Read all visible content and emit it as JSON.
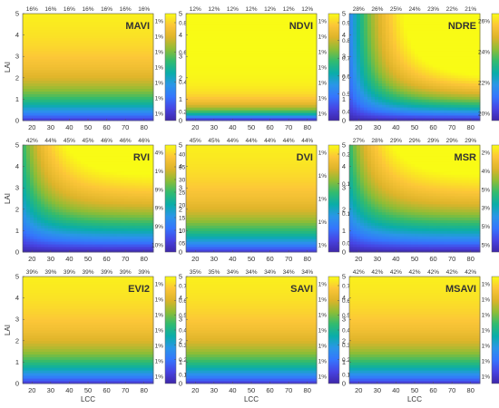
{
  "colormap": [
    "#3e26a8",
    "#4744e3",
    "#3575fd",
    "#2a96e8",
    "#0aada9",
    "#31bb6f",
    "#8dbd36",
    "#ddb42a",
    "#fcc638",
    "#f9fb15"
  ],
  "chart_data": [
    {
      "type": "heatmap",
      "panel": "MAVI",
      "title": "MAVI",
      "xlabel": "",
      "ylabel": "LAI",
      "xlim": [
        15,
        85
      ],
      "ylim": [
        0,
        5
      ],
      "xticks": [
        "20",
        "30",
        "40",
        "50",
        "60",
        "70",
        "80"
      ],
      "yticks": [
        "0",
        "1",
        "2",
        "3",
        "4",
        "5"
      ],
      "top_labels": [
        "16%",
        "16%",
        "16%",
        "16%",
        "16%",
        "16%",
        "16%"
      ],
      "colorbar_label": "",
      "colorbar_left": [
        "1%",
        "1%",
        "1%",
        "1%",
        "1%",
        "1%",
        "1%"
      ],
      "colorbar_right": [
        "0.8",
        "0.6",
        "0.4",
        "0.2"
      ],
      "pattern": "lai"
    },
    {
      "type": "heatmap",
      "panel": "NDVI",
      "title": "NDVI",
      "xlabel": "",
      "ylabel": "",
      "xlim": [
        15,
        85
      ],
      "ylim": [
        0,
        5
      ],
      "xticks": [
        "20",
        "30",
        "40",
        "50",
        "60",
        "70",
        "80"
      ],
      "yticks": [
        "0",
        "1",
        "2",
        "3",
        "4",
        "5"
      ],
      "top_labels": [
        "12%",
        "12%",
        "12%",
        "12%",
        "12%",
        "12%",
        "12%"
      ],
      "colorbar_label": "",
      "colorbar_left": [
        "1%",
        "1%",
        "1%",
        "1%",
        "1%",
        "1%",
        "1%"
      ],
      "colorbar_right": [
        "0.9",
        "0.8",
        "0.7",
        "0.6",
        "0.5",
        "0.4"
      ],
      "pattern": "ndvi"
    },
    {
      "type": "heatmap",
      "panel": "NDRE",
      "title": "NDRE",
      "xlabel": "",
      "ylabel": "",
      "xlim": [
        15,
        85
      ],
      "ylim": [
        0,
        5
      ],
      "xticks": [
        "20",
        "30",
        "40",
        "50",
        "60",
        "70",
        "80"
      ],
      "yticks": [
        "0",
        "1",
        "2",
        "3",
        "4",
        "5"
      ],
      "top_labels": [
        "28%",
        "26%",
        "25%",
        "24%",
        "23%",
        "22%",
        "21%"
      ],
      "colorbar_label": "VI",
      "colorbar_left": [
        "26%",
        "24%",
        "22%",
        "20%"
      ],
      "colorbar_right": [
        "0.5",
        "0.4",
        "0.3",
        "0.2",
        "0.1"
      ],
      "pattern": "curve_strong"
    },
    {
      "type": "heatmap",
      "panel": "RVI",
      "title": "RVI",
      "xlabel": "",
      "ylabel": "LAI",
      "xlim": [
        15,
        85
      ],
      "ylim": [
        0,
        5
      ],
      "xticks": [
        "20",
        "30",
        "40",
        "50",
        "60",
        "70",
        "80"
      ],
      "yticks": [
        "0",
        "1",
        "2",
        "3",
        "4",
        "5"
      ],
      "top_labels": [
        "42%",
        "44%",
        "45%",
        "45%",
        "46%",
        "46%",
        "46%"
      ],
      "colorbar_label": "",
      "colorbar_left": [
        "4%",
        "1%",
        "9%",
        "9%",
        "9%",
        "10%"
      ],
      "colorbar_right": [
        "40",
        "35",
        "30",
        "25",
        "20",
        "15",
        "10",
        "05"
      ],
      "pattern": "curve"
    },
    {
      "type": "heatmap",
      "panel": "DVI",
      "title": "DVI",
      "xlabel": "",
      "ylabel": "",
      "xlim": [
        15,
        85
      ],
      "ylim": [
        0,
        5
      ],
      "xticks": [
        "20",
        "30",
        "40",
        "50",
        "60",
        "70",
        "80"
      ],
      "yticks": [
        "0",
        "1",
        "2",
        "3",
        "4",
        "5"
      ],
      "top_labels": [
        "45%",
        "45%",
        "44%",
        "44%",
        "44%",
        "44%",
        "44%"
      ],
      "colorbar_label": "",
      "colorbar_left": [
        "1%",
        "1%",
        "1%",
        "1%",
        "1%"
      ],
      "colorbar_right": [
        "0.20",
        "0.15",
        "0.10",
        "0.05"
      ],
      "pattern": "lai"
    },
    {
      "type": "heatmap",
      "panel": "MSR",
      "title": "MSR",
      "xlabel": "",
      "ylabel": "",
      "xlim": [
        15,
        85
      ],
      "ylim": [
        0,
        5
      ],
      "xticks": [
        "20",
        "30",
        "40",
        "50",
        "60",
        "70",
        "80"
      ],
      "yticks": [
        "0",
        "1",
        "2",
        "3",
        "4",
        "5"
      ],
      "top_labels": [
        "27%",
        "28%",
        "29%",
        "29%",
        "29%",
        "29%",
        "29%"
      ],
      "colorbar_label": "",
      "colorbar_left": [
        "2%",
        "4%",
        "5%",
        "3%",
        "5%",
        "5%"
      ],
      "colorbar_right": [
        "6.0",
        "5.0",
        "4.0",
        "3.0",
        "2.0",
        "1.0"
      ],
      "pattern": "curve"
    },
    {
      "type": "heatmap",
      "panel": "EVI2",
      "title": "EVI2",
      "xlabel": "LCC",
      "ylabel": "LAI",
      "xlim": [
        15,
        85
      ],
      "ylim": [
        0,
        5
      ],
      "xticks": [
        "20",
        "30",
        "40",
        "50",
        "60",
        "70",
        "80"
      ],
      "yticks": [
        "0",
        "1",
        "2",
        "3",
        "4",
        "5"
      ],
      "top_labels": [
        "39%",
        "39%",
        "39%",
        "39%",
        "39%",
        "39%",
        "39%"
      ],
      "colorbar_label": "",
      "colorbar_left": [
        "1%",
        "1%",
        "1%",
        "1%",
        "1%",
        "1%",
        "1%"
      ],
      "colorbar_right": [
        "0.7",
        "0.6",
        "0.5",
        "0.4",
        "0.3",
        "0.2",
        "0.1"
      ],
      "pattern": "lai"
    },
    {
      "type": "heatmap",
      "panel": "SAVI",
      "title": "SAVI",
      "xlabel": "LCC",
      "ylabel": "",
      "xlim": [
        15,
        85
      ],
      "ylim": [
        0,
        5
      ],
      "xticks": [
        "20",
        "30",
        "40",
        "50",
        "60",
        "70",
        "80"
      ],
      "yticks": [
        "0",
        "1",
        "2",
        "3",
        "4",
        "5"
      ],
      "top_labels": [
        "35%",
        "35%",
        "34%",
        "34%",
        "34%",
        "34%",
        "34%"
      ],
      "colorbar_label": "",
      "colorbar_left": [
        "1%",
        "1%",
        "1%",
        "1%",
        "1%",
        "1%",
        "1%"
      ],
      "colorbar_right": [
        "0.70",
        "0.60",
        "0.50",
        "0.40",
        "0.30",
        "0.20",
        "0.10"
      ],
      "pattern": "lai"
    },
    {
      "type": "heatmap",
      "panel": "MSAVI",
      "title": "MSAVI",
      "xlabel": "LCC",
      "ylabel": "",
      "xlim": [
        15,
        85
      ],
      "ylim": [
        0,
        5
      ],
      "xticks": [
        "20",
        "30",
        "40",
        "50",
        "60",
        "70",
        "80"
      ],
      "yticks": [
        "0",
        "1",
        "2",
        "3",
        "4",
        "5"
      ],
      "top_labels": [
        "42%",
        "42%",
        "42%",
        "42%",
        "42%",
        "42%",
        "42%"
      ],
      "colorbar_label": "VI",
      "colorbar_left": [
        "1%",
        "1%",
        "1%",
        "1%",
        "1%",
        "1%",
        "1%"
      ],
      "colorbar_right": [
        "0.8",
        "0.7",
        "0.6",
        "0.5",
        "0.4",
        "0.3",
        "0.2",
        "0.1"
      ],
      "pattern": "lai"
    }
  ]
}
